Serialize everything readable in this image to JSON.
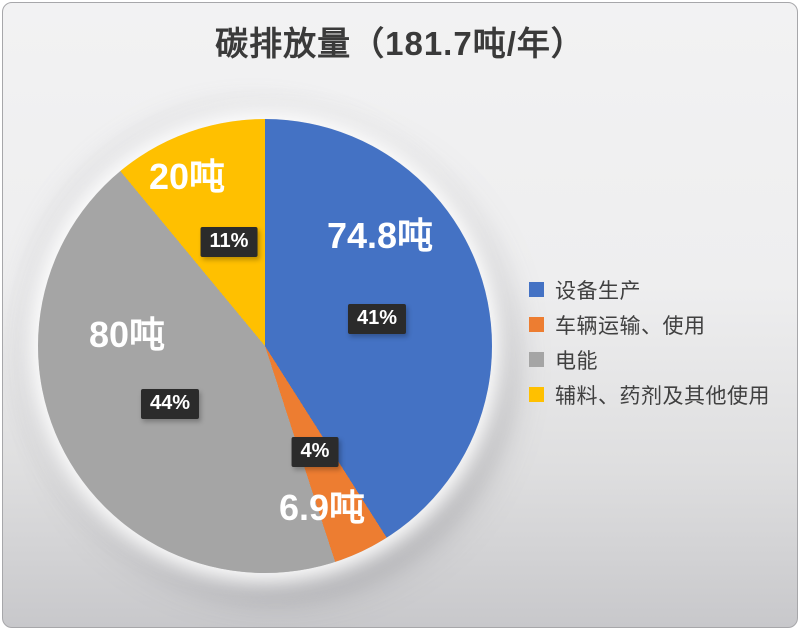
{
  "title": "碳排放量（181.7吨/年）",
  "colors": {
    "badge_bg": "#2B2B2B",
    "badge_text": "#FFFFFF",
    "slice_label_text": "#FFFFFF",
    "title_text": "#3A3A3A",
    "legend_text": "#404040",
    "slide_bg_top": "#F2F2F3",
    "slide_bg_bottom": "#C8C8CB"
  },
  "chart_data": {
    "type": "pie",
    "title": "碳排放量（181.7吨/年）",
    "total_value": 181.7,
    "total_unit": "吨/年",
    "start_angle_deg": 0,
    "direction": "clockwise",
    "legend_position": "right",
    "slices": [
      {
        "label": "设备生产",
        "value": 74.8,
        "value_label": "74.8吨",
        "percent": 41,
        "percent_label": "41%",
        "color": "#4472C4"
      },
      {
        "label": "车辆运输、使用",
        "value": 6.9,
        "value_label": "6.9吨",
        "percent": 4,
        "percent_label": "4%",
        "color": "#ED7D31"
      },
      {
        "label": "电能",
        "value": 80,
        "value_label": "80吨",
        "percent": 44,
        "percent_label": "44%",
        "color": "#A5A5A5"
      },
      {
        "label": "辅料、药剂及其他使用",
        "value": 20,
        "value_label": "20吨",
        "percent": 11,
        "percent_label": "11%",
        "color": "#FFC000"
      }
    ]
  }
}
